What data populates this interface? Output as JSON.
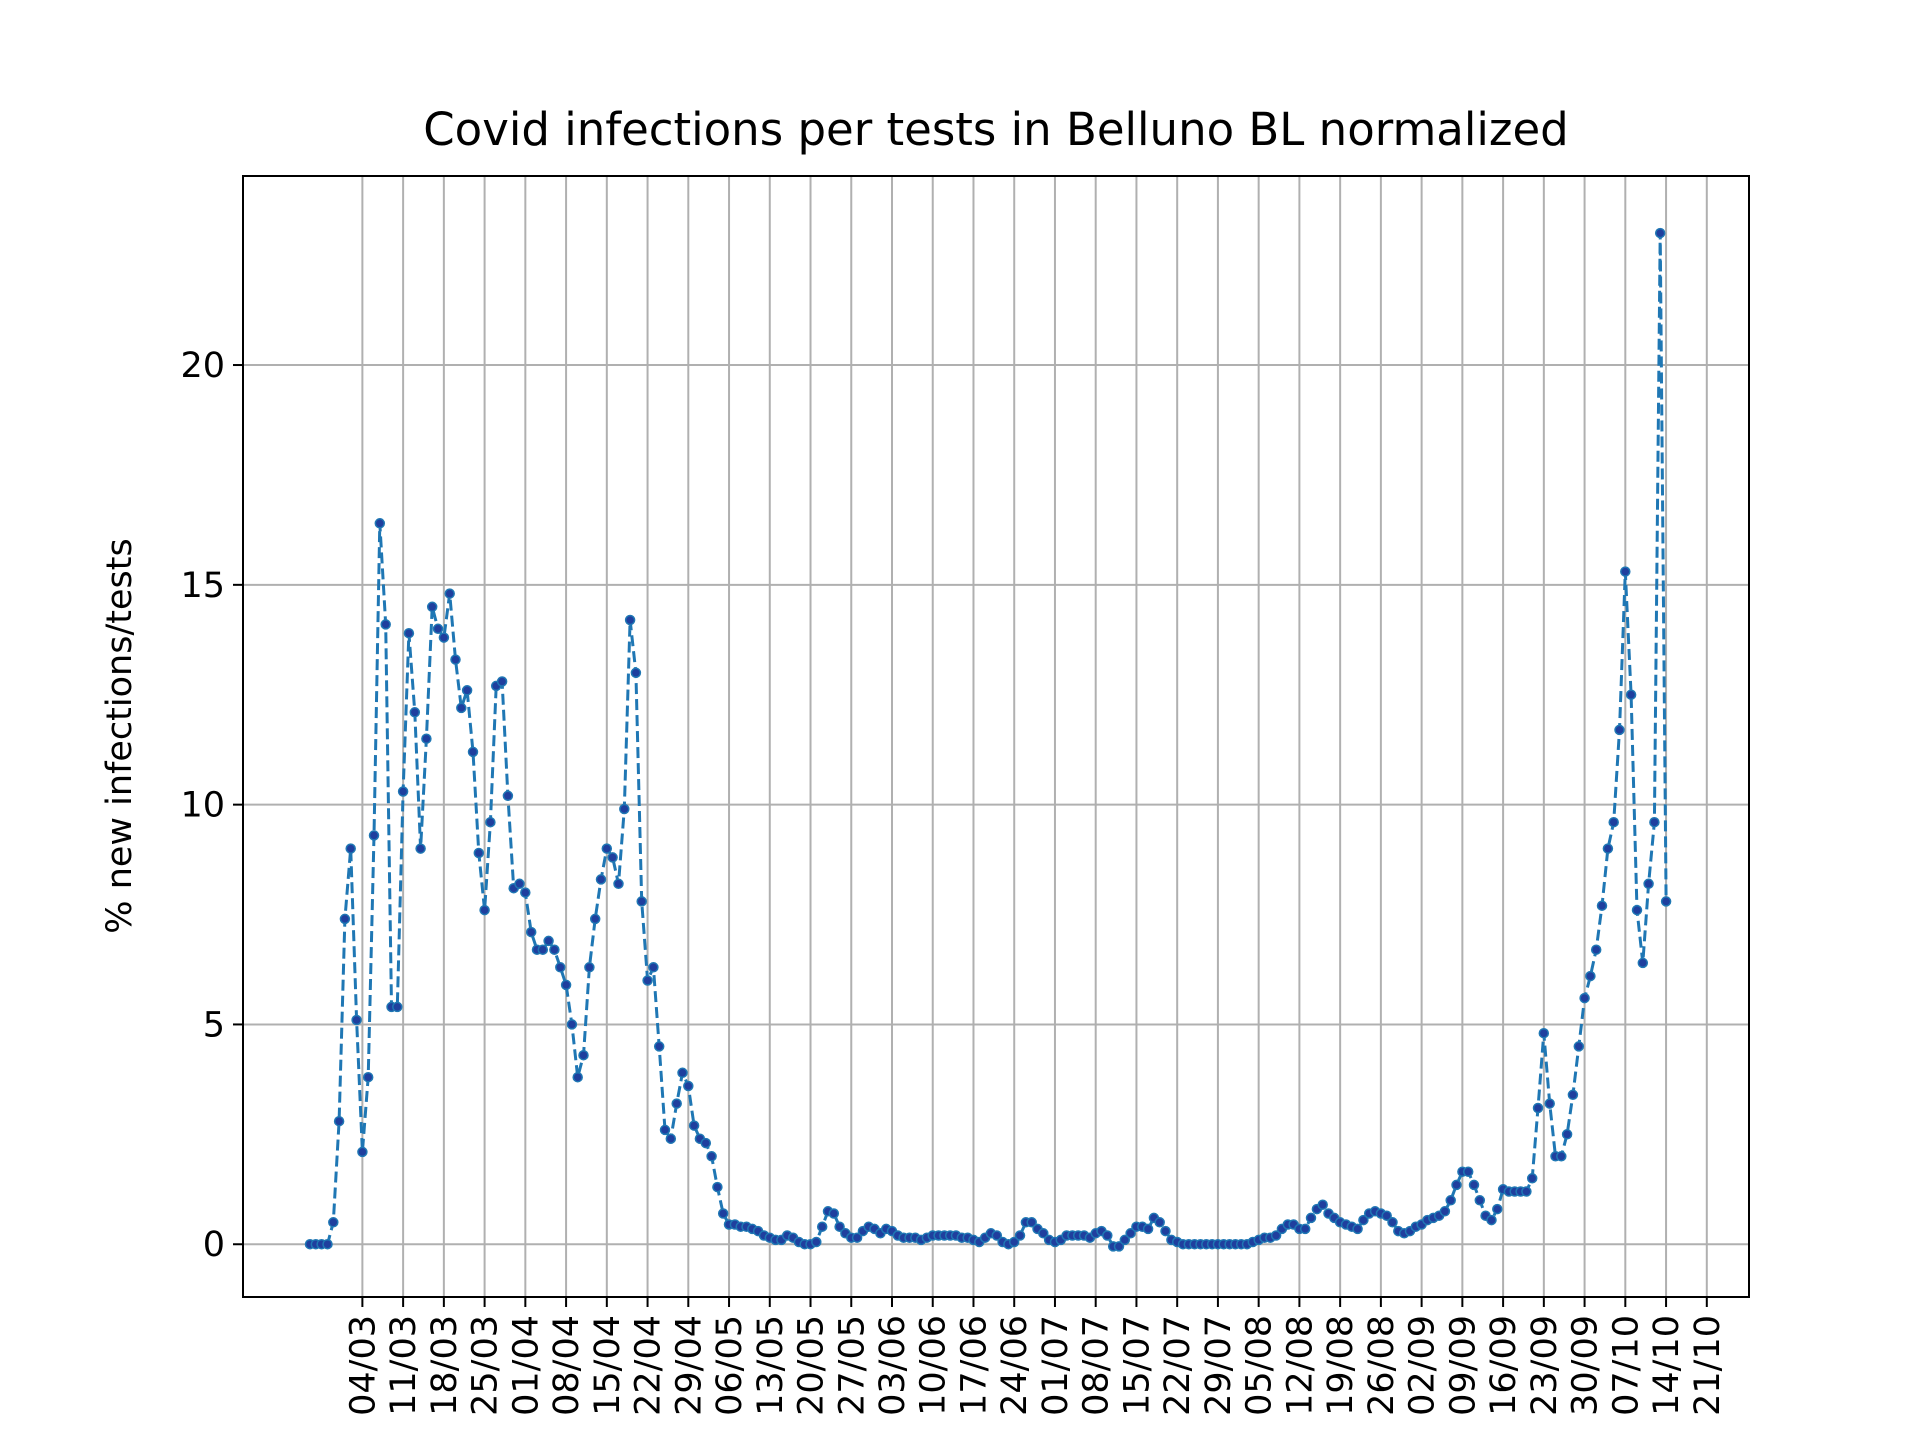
{
  "chart_data": {
    "type": "line",
    "title": "Covid infections per tests in Belluno BL normalized",
    "xlabel": "",
    "ylabel": "% new infections/tests",
    "ylim": [
      -1.2,
      24.3
    ],
    "yticks": [
      0,
      5,
      10,
      15,
      20
    ],
    "ytick_labels": [
      "0",
      "5",
      "10",
      "15",
      "20"
    ],
    "grid": true,
    "legend": "none",
    "line_color": "#1f77b4",
    "grid_color": "#b0b0b0",
    "line_style": "dashed with dot markers",
    "start_date": "2020-02-24",
    "xtick_labels": [
      "04/03",
      "11/03",
      "18/03",
      "25/03",
      "01/04",
      "08/04",
      "15/04",
      "22/04",
      "29/04",
      "06/05",
      "13/05",
      "20/05",
      "27/05",
      "03/06",
      "10/06",
      "17/06",
      "24/06",
      "01/07",
      "08/07",
      "15/07",
      "22/07",
      "29/07",
      "05/08",
      "12/08",
      "19/08",
      "26/08",
      "02/09",
      "09/09",
      "16/09",
      "23/09",
      "30/09",
      "07/10",
      "14/10",
      "21/10"
    ],
    "values": [
      0,
      0,
      0,
      0,
      0.5,
      2.8,
      7.4,
      9.0,
      5.1,
      2.1,
      3.8,
      9.3,
      16.4,
      14.1,
      5.4,
      5.4,
      10.3,
      13.9,
      12.1,
      9.0,
      11.5,
      14.5,
      14.0,
      13.8,
      14.8,
      13.3,
      12.2,
      12.6,
      11.2,
      8.9,
      7.6,
      9.6,
      12.7,
      12.8,
      10.2,
      8.1,
      8.2,
      8.0,
      7.1,
      6.7,
      6.7,
      6.9,
      6.7,
      6.3,
      5.9,
      5.0,
      3.8,
      4.3,
      6.3,
      7.4,
      8.3,
      9.0,
      8.8,
      8.2,
      9.9,
      14.2,
      13.0,
      7.8,
      6.0,
      6.3,
      4.5,
      2.6,
      2.4,
      3.2,
      3.9,
      3.6,
      2.7,
      2.4,
      2.3,
      2.0,
      1.3,
      0.7,
      0.45,
      0.45,
      0.4,
      0.4,
      0.35,
      0.3,
      0.2,
      0.15,
      0.1,
      0.1,
      0.2,
      0.15,
      0.05,
      0,
      0,
      0.05,
      0.4,
      0.75,
      0.7,
      0.4,
      0.25,
      0.15,
      0.15,
      0.3,
      0.4,
      0.35,
      0.25,
      0.35,
      0.3,
      0.2,
      0.15,
      0.15,
      0.15,
      0.1,
      0.15,
      0.2,
      0.2,
      0.2,
      0.2,
      0.2,
      0.15,
      0.15,
      0.1,
      0.05,
      0.15,
      0.25,
      0.2,
      0.05,
      0,
      0.05,
      0.2,
      0.5,
      0.5,
      0.35,
      0.25,
      0.1,
      0.05,
      0.1,
      0.2,
      0.2,
      0.2,
      0.2,
      0.15,
      0.25,
      0.3,
      0.2,
      -0.05,
      -0.05,
      0.1,
      0.25,
      0.4,
      0.4,
      0.35,
      0.6,
      0.5,
      0.3,
      0.1,
      0.05,
      0,
      0,
      0,
      0,
      0,
      0,
      0,
      0,
      0,
      0,
      0,
      0,
      0.05,
      0.1,
      0.15,
      0.15,
      0.2,
      0.35,
      0.45,
      0.45,
      0.35,
      0.35,
      0.6,
      0.8,
      0.9,
      0.7,
      0.6,
      0.5,
      0.45,
      0.4,
      0.35,
      0.55,
      0.7,
      0.75,
      0.7,
      0.65,
      0.5,
      0.3,
      0.25,
      0.3,
      0.4,
      0.45,
      0.55,
      0.6,
      0.65,
      0.75,
      1.0,
      1.35,
      1.65,
      1.65,
      1.35,
      1.0,
      0.65,
      0.55,
      0.8,
      1.25,
      1.2,
      1.2,
      1.2,
      1.2,
      1.5,
      3.1,
      4.8,
      3.2,
      2.0,
      2.0,
      2.5,
      3.4,
      4.5,
      5.6,
      6.1,
      6.7,
      7.7,
      9.0,
      9.6,
      11.7,
      15.3,
      12.5,
      7.6,
      6.4,
      8.2,
      9.6,
      23.0,
      7.8
    ]
  }
}
